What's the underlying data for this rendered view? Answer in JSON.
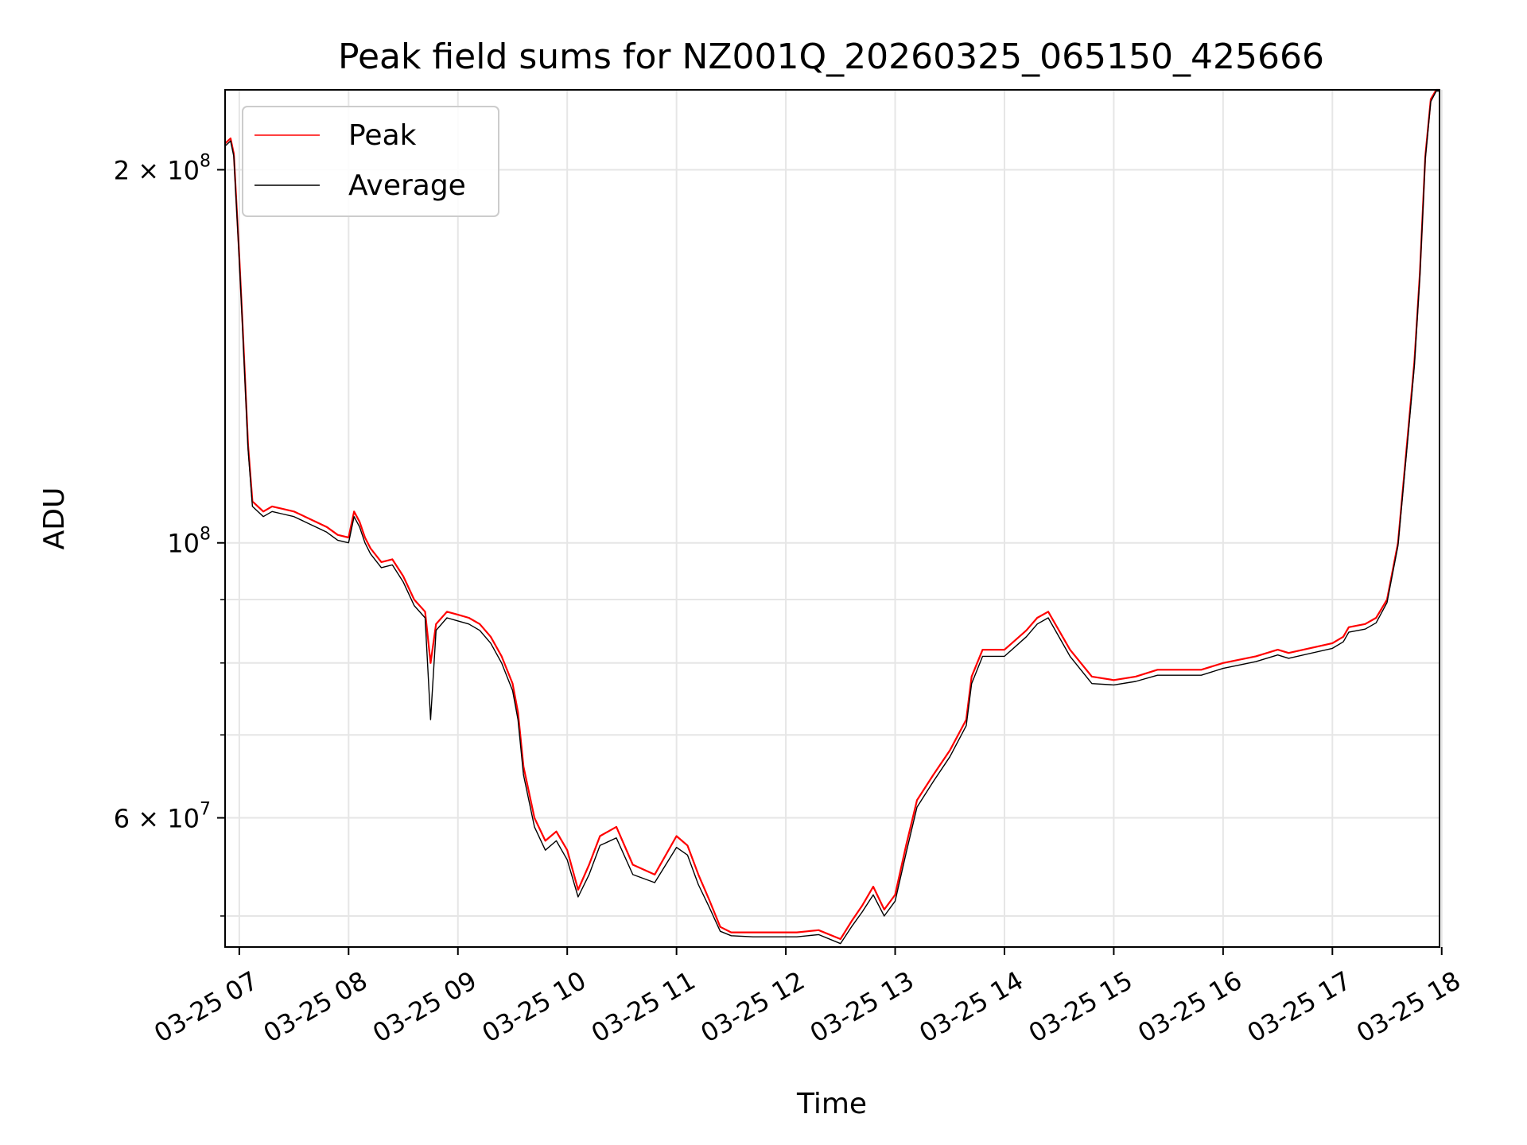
{
  "chart_data": {
    "type": "line",
    "title": "Peak field sums for NZ001Q_20260325_065150_425666",
    "xlabel": "Time",
    "ylabel": "ADU",
    "yscale": "log",
    "ylim": [
      47200000,
      232000000
    ],
    "xlim_hours": [
      6.87,
      17.98
    ],
    "grid": true,
    "legend_position": "top-left",
    "x_ticks": [
      {
        "hour": 7,
        "label": "03-25 07"
      },
      {
        "hour": 8,
        "label": "03-25 08"
      },
      {
        "hour": 9,
        "label": "03-25 09"
      },
      {
        "hour": 10,
        "label": "03-25 10"
      },
      {
        "hour": 11,
        "label": "03-25 11"
      },
      {
        "hour": 12,
        "label": "03-25 12"
      },
      {
        "hour": 13,
        "label": "03-25 13"
      },
      {
        "hour": 14,
        "label": "03-25 14"
      },
      {
        "hour": 15,
        "label": "03-25 15"
      },
      {
        "hour": 16,
        "label": "03-25 16"
      },
      {
        "hour": 17,
        "label": "03-25 17"
      },
      {
        "hour": 18,
        "label": "03-25 18"
      }
    ],
    "y_major_ticks": [
      {
        "value": 200000000,
        "base": "2 × 10",
        "exp": "8"
      },
      {
        "value": 100000000,
        "base": "10",
        "exp": "8"
      },
      {
        "value": 60000000,
        "base": "6 × 10",
        "exp": "7"
      }
    ],
    "y_minor_grid": [
      50000000,
      70000000,
      80000000,
      90000000
    ],
    "series": [
      {
        "name": "Peak",
        "color": "#ff0000",
        "x": [
          6.87,
          6.92,
          6.95,
          7.0,
          7.03,
          7.08,
          7.12,
          7.17,
          7.22,
          7.3,
          7.4,
          7.5,
          7.6,
          7.7,
          7.8,
          7.9,
          8.0,
          8.05,
          8.1,
          8.15,
          8.2,
          8.3,
          8.4,
          8.5,
          8.6,
          8.7,
          8.75,
          8.8,
          8.9,
          9.0,
          9.1,
          9.2,
          9.3,
          9.4,
          9.5,
          9.55,
          9.6,
          9.7,
          9.8,
          9.9,
          10.0,
          10.1,
          10.2,
          10.3,
          10.45,
          10.6,
          10.8,
          11.0,
          11.1,
          11.2,
          11.3,
          11.4,
          11.5,
          11.7,
          11.9,
          12.1,
          12.3,
          12.5,
          12.6,
          12.7,
          12.8,
          12.9,
          13.0,
          13.1,
          13.2,
          13.35,
          13.5,
          13.65,
          13.7,
          13.8,
          14.0,
          14.2,
          14.3,
          14.4,
          14.6,
          14.8,
          15.0,
          15.2,
          15.4,
          15.6,
          15.8,
          16.0,
          16.3,
          16.5,
          16.6,
          17.0,
          17.1,
          17.15,
          17.3,
          17.4,
          17.5,
          17.6,
          17.7,
          17.75,
          17.8,
          17.85,
          17.9,
          17.95,
          17.98
        ],
        "values": [
          210000000,
          212000000,
          206000000,
          170000000,
          150000000,
          120000000,
          108000000,
          107000000,
          106000000,
          107000000,
          106500000,
          106000000,
          105000000,
          104000000,
          103000000,
          101500000,
          101000000,
          106000000,
          104000000,
          101000000,
          99000000,
          96500000,
          97000000,
          94000000,
          90000000,
          88000000,
          80000000,
          86000000,
          88000000,
          87500000,
          87000000,
          86000000,
          84000000,
          81000000,
          77000000,
          73000000,
          66000000,
          60000000,
          57500000,
          58500000,
          56500000,
          52500000,
          55000000,
          58000000,
          59000000,
          55000000,
          54000000,
          58000000,
          57000000,
          54000000,
          51500000,
          49000000,
          48500000,
          48500000,
          48500000,
          48500000,
          48700000,
          47900000,
          49500000,
          51000000,
          52800000,
          50600000,
          52000000,
          57000000,
          62000000,
          65000000,
          68000000,
          72000000,
          78000000,
          82000000,
          82000000,
          85000000,
          87000000,
          88000000,
          82000000,
          78000000,
          77500000,
          78000000,
          79000000,
          79000000,
          79000000,
          80000000,
          81000000,
          82000000,
          81500000,
          83000000,
          84000000,
          85500000,
          86000000,
          87000000,
          90000000,
          100000000,
          125000000,
          140000000,
          165000000,
          205000000,
          228000000,
          232000000,
          232000000
        ]
      },
      {
        "name": "Average",
        "color": "#000000",
        "x": [
          6.87,
          6.92,
          6.95,
          7.0,
          7.03,
          7.08,
          7.12,
          7.17,
          7.22,
          7.3,
          7.4,
          7.5,
          7.6,
          7.7,
          7.8,
          7.9,
          8.0,
          8.05,
          8.1,
          8.15,
          8.2,
          8.3,
          8.4,
          8.5,
          8.6,
          8.7,
          8.75,
          8.8,
          8.9,
          9.0,
          9.1,
          9.2,
          9.3,
          9.4,
          9.5,
          9.55,
          9.6,
          9.7,
          9.8,
          9.9,
          10.0,
          10.1,
          10.2,
          10.3,
          10.45,
          10.6,
          10.8,
          11.0,
          11.1,
          11.2,
          11.3,
          11.4,
          11.5,
          11.7,
          11.9,
          12.1,
          12.3,
          12.5,
          12.6,
          12.7,
          12.8,
          12.9,
          13.0,
          13.1,
          13.2,
          13.35,
          13.5,
          13.65,
          13.7,
          13.8,
          14.0,
          14.2,
          14.3,
          14.4,
          14.6,
          14.8,
          15.0,
          15.2,
          15.4,
          15.6,
          15.8,
          16.0,
          16.3,
          16.5,
          16.6,
          17.0,
          17.1,
          17.15,
          17.3,
          17.4,
          17.5,
          17.6,
          17.7,
          17.75,
          17.8,
          17.85,
          17.9,
          17.95,
          17.98
        ],
        "values": [
          209000000,
          211000000,
          205000000,
          169000000,
          149000000,
          119000000,
          107000000,
          106000000,
          105000000,
          106000000,
          105500000,
          105000000,
          104000000,
          103000000,
          102000000,
          100500000,
          100000000,
          105000000,
          103000000,
          100000000,
          98000000,
          95500000,
          96000000,
          93000000,
          89000000,
          87000000,
          72000000,
          85000000,
          87000000,
          86500000,
          86000000,
          85000000,
          83000000,
          80000000,
          76000000,
          72000000,
          65000000,
          59000000,
          56500000,
          57500000,
          55500000,
          51800000,
          54000000,
          57000000,
          57800000,
          54000000,
          53200000,
          56800000,
          56000000,
          53000000,
          50800000,
          48600000,
          48200000,
          48100000,
          48100000,
          48100000,
          48300000,
          47500000,
          49000000,
          50400000,
          52000000,
          50000000,
          51400000,
          56200000,
          61200000,
          64200000,
          67200000,
          71200000,
          77000000,
          81000000,
          81000000,
          84000000,
          86000000,
          87000000,
          81000000,
          77000000,
          76800000,
          77300000,
          78200000,
          78200000,
          78200000,
          79200000,
          80200000,
          81200000,
          80700000,
          82200000,
          83200000,
          84700000,
          85200000,
          86200000,
          89500000,
          99500000,
          124000000,
          139000000,
          164000000,
          204000000,
          227000000,
          231500000,
          231500000
        ]
      }
    ]
  }
}
